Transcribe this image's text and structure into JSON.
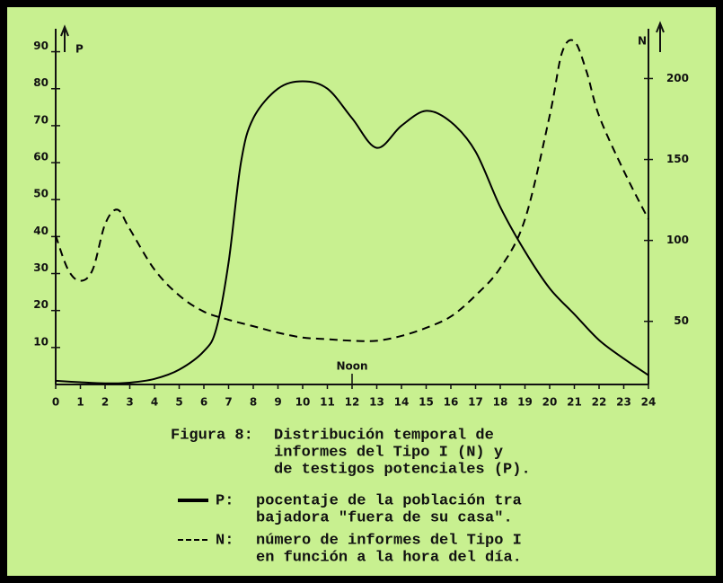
{
  "chart_data": {
    "type": "line",
    "xlim": [
      0,
      24
    ],
    "xticks": [
      0,
      1,
      2,
      3,
      4,
      5,
      6,
      7,
      8,
      9,
      10,
      11,
      12,
      13,
      14,
      15,
      16,
      17,
      18,
      19,
      20,
      21,
      22,
      23,
      24
    ],
    "ylim": [
      0,
      95
    ],
    "yticks": [
      10,
      20,
      30,
      40,
      50,
      60,
      70,
      80,
      90
    ],
    "y2lim": [
      11,
      228
    ],
    "y2ticks": [
      50,
      100,
      150,
      200
    ],
    "ylabel": "P",
    "y2label": "N",
    "annotations": [
      {
        "text": "Noon",
        "x": 12
      }
    ],
    "caption": {
      "label": "Figura 8:",
      "lines": [
        "Distribución temporal de",
        "informes del Tipo I (N) y",
        "de testigos potenciales (P)."
      ]
    },
    "series": [
      {
        "name": "P:",
        "axis": "y",
        "color": "#000000",
        "dash": false,
        "x": [
          0,
          1,
          2,
          3,
          4,
          5,
          6,
          6.5,
          7,
          7.5,
          8,
          9,
          10,
          11,
          12,
          13,
          14,
          15,
          16,
          17,
          18,
          19,
          20,
          21,
          22,
          23,
          24
        ],
        "values": [
          1,
          0.6,
          0.3,
          0.5,
          1.5,
          4,
          9,
          15,
          33,
          60,
          72,
          80,
          82,
          80,
          72,
          64,
          70,
          74,
          71,
          63,
          48,
          36,
          26,
          19,
          12,
          7,
          2.5
        ],
        "description": [
          "pocentaje de la población tra",
          "bajadora \"fuera de su casa\"."
        ]
      },
      {
        "name": "N:",
        "axis": "y2",
        "color": "#000000",
        "dash": true,
        "x": [
          0,
          0.5,
          1,
          1.5,
          2,
          2.5,
          3,
          4,
          5,
          6,
          7,
          8,
          9,
          10,
          11,
          12,
          13,
          14,
          15,
          16,
          17,
          18,
          19,
          20,
          20.5,
          21,
          21.5,
          22,
          23,
          24
        ],
        "values": [
          103,
          82,
          75,
          82,
          110,
          119,
          107,
          82,
          66,
          56,
          51,
          47,
          43,
          40,
          39,
          38,
          38,
          41,
          46,
          53,
          66,
          83,
          113,
          177,
          216,
          223,
          204,
          177,
          143,
          113
        ],
        "description": [
          "número de informes del Tipo I",
          "en función a la hora del día."
        ]
      }
    ]
  }
}
